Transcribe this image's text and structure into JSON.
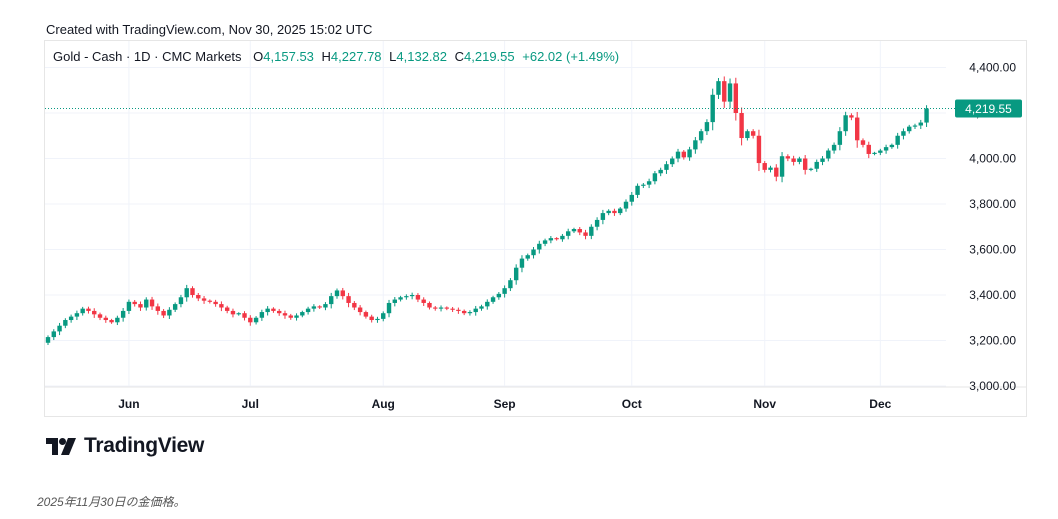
{
  "header": {
    "created_text": "Created with TradingView.com, Nov 30, 2025 15:02 UTC"
  },
  "legend": {
    "symbol": "Gold - Cash · 1D · CMC Markets",
    "open_label": "O",
    "open": "4,157.53",
    "high_label": "H",
    "high": "4,227.78",
    "low_label": "L",
    "low": "4,132.82",
    "close_label": "C",
    "close": "4,219.55",
    "change": "+62.02 (+1.49%)"
  },
  "colors": {
    "up": "#089981",
    "down": "#f23645",
    "grid": "#f0f3fa",
    "text": "#131722"
  },
  "brand": {
    "logo_text": "TradingView"
  },
  "caption": "2025年11月30日の金価格。",
  "chart_data": {
    "type": "candlestick",
    "title": "Gold - Cash · 1D · CMC Markets",
    "ylim": [
      3000,
      4450
    ],
    "y_ticks": [
      {
        "value": 3000,
        "label": "3,000.00"
      },
      {
        "value": 3200,
        "label": "3,200.00"
      },
      {
        "value": 3400,
        "label": "3,400.00"
      },
      {
        "value": 3600,
        "label": "3,600.00"
      },
      {
        "value": 3800,
        "label": "3,800.00"
      },
      {
        "value": 4000,
        "label": "4,000.00"
      },
      {
        "value": 4200,
        "label": "4,200.00"
      },
      {
        "value": 4400,
        "label": "4,400.00"
      }
    ],
    "x_ticks": [
      {
        "index": 14,
        "label": "Jun"
      },
      {
        "index": 35,
        "label": "Jul"
      },
      {
        "index": 58,
        "label": "Aug"
      },
      {
        "index": 79,
        "label": "Sep"
      },
      {
        "index": 101,
        "label": "Oct"
      },
      {
        "index": 124,
        "label": "Nov"
      },
      {
        "index": 144,
        "label": "Dec"
      }
    ],
    "last_price": {
      "value": 4219.55,
      "label": "4,219.55"
    },
    "closes": [
      3215,
      3240,
      3265,
      3290,
      3305,
      3320,
      3340,
      3330,
      3315,
      3300,
      3290,
      3280,
      3300,
      3330,
      3370,
      3360,
      3345,
      3380,
      3350,
      3330,
      3310,
      3335,
      3360,
      3390,
      3430,
      3400,
      3385,
      3375,
      3370,
      3360,
      3345,
      3330,
      3315,
      3320,
      3300,
      3280,
      3300,
      3325,
      3340,
      3330,
      3320,
      3310,
      3300,
      3310,
      3325,
      3340,
      3350,
      3345,
      3360,
      3395,
      3420,
      3395,
      3365,
      3345,
      3325,
      3305,
      3290,
      3295,
      3320,
      3365,
      3380,
      3390,
      3395,
      3400,
      3380,
      3365,
      3345,
      3340,
      3345,
      3340,
      3335,
      3330,
      3320,
      3325,
      3340,
      3350,
      3370,
      3390,
      3405,
      3430,
      3465,
      3520,
      3560,
      3575,
      3600,
      3625,
      3640,
      3650,
      3645,
      3660,
      3680,
      3690,
      3675,
      3660,
      3700,
      3730,
      3760,
      3770,
      3760,
      3780,
      3810,
      3840,
      3880,
      3885,
      3900,
      3935,
      3950,
      3975,
      4000,
      4030,
      4005,
      4040,
      4080,
      4120,
      4160,
      4280,
      4340,
      4250,
      4330,
      4200,
      4090,
      4120,
      4100,
      3980,
      3950,
      3960,
      3920,
      4010,
      4000,
      3985,
      4000,
      3950,
      3955,
      3985,
      4000,
      4035,
      4060,
      4120,
      4190,
      4180,
      4080,
      4060,
      4020,
      4025,
      4035,
      4050,
      4060,
      4100,
      4120,
      4140,
      4145,
      4158,
      4219.55
    ]
  }
}
